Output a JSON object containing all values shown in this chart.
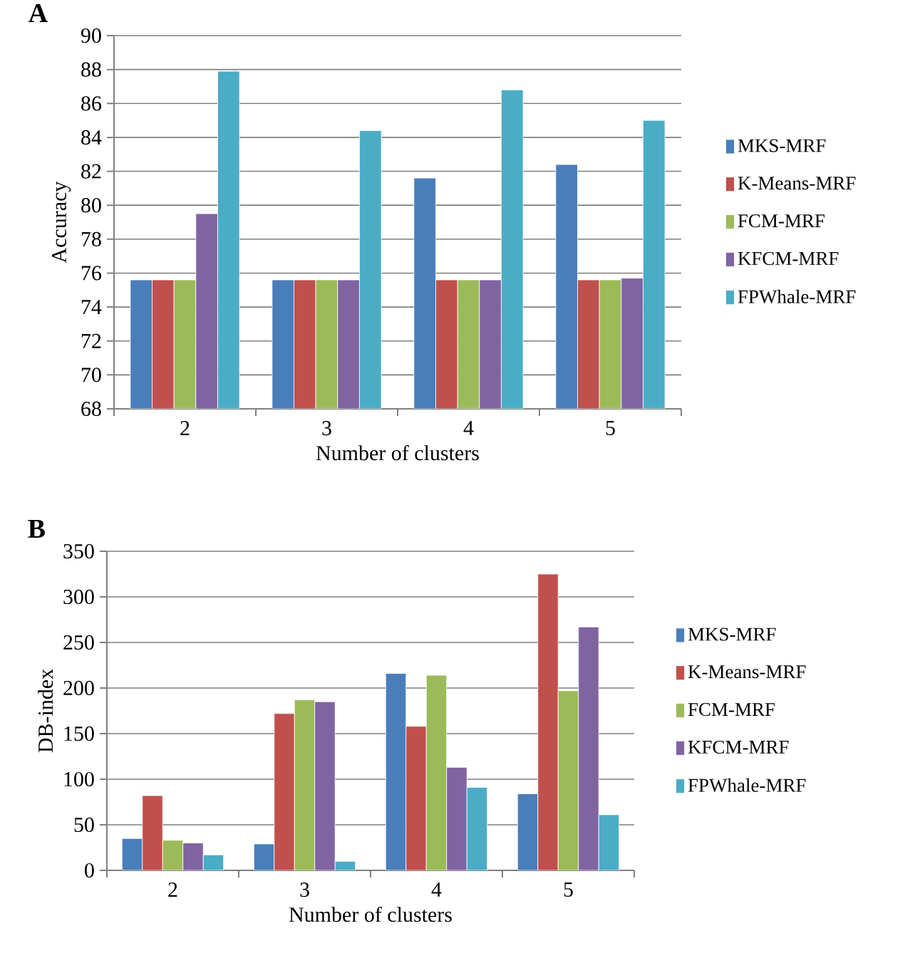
{
  "chart_data": [
    {
      "type": "bar",
      "title": "A",
      "xlabel": "Number of clusters",
      "ylabel": "Accuracy",
      "categories": [
        "2",
        "3",
        "4",
        "5"
      ],
      "series": [
        {
          "name": "MKS-MRF",
          "color": "#4a7ebb",
          "values": [
            75.6,
            75.6,
            81.6,
            82.4
          ]
        },
        {
          "name": "K-Means-MRF",
          "color": "#c0504d",
          "values": [
            75.6,
            75.6,
            75.6,
            75.6
          ]
        },
        {
          "name": "FCM-MRF",
          "color": "#9bbb59",
          "values": [
            75.6,
            75.6,
            75.6,
            75.6
          ]
        },
        {
          "name": "KFCM-MRF",
          "color": "#8064a2",
          "values": [
            79.5,
            75.6,
            75.6,
            75.7
          ]
        },
        {
          "name": "FPWhale-MRF",
          "color": "#4bacc6",
          "values": [
            87.9,
            84.4,
            86.8,
            85.0
          ]
        }
      ],
      "ylim": [
        68,
        90
      ],
      "yticks": [
        68,
        70,
        72,
        74,
        76,
        78,
        80,
        82,
        84,
        86,
        88,
        90
      ],
      "grid": "y",
      "legend": "right"
    },
    {
      "type": "bar",
      "title": "B",
      "xlabel": "Number of clusters",
      "ylabel": "DB-index",
      "categories": [
        "2",
        "3",
        "4",
        "5"
      ],
      "series": [
        {
          "name": "MKS-MRF",
          "color": "#4a7ebb",
          "values": [
            35,
            29,
            216,
            84
          ]
        },
        {
          "name": "K-Means-MRF",
          "color": "#c0504d",
          "values": [
            82,
            172,
            158,
            325
          ]
        },
        {
          "name": "FCM-MRF",
          "color": "#9bbb59",
          "values": [
            33,
            187,
            214,
            197
          ]
        },
        {
          "name": "KFCM-MRF",
          "color": "#8064a2",
          "values": [
            30,
            185,
            113,
            267
          ]
        },
        {
          "name": "FPWhale-MRF",
          "color": "#4bacc6",
          "values": [
            17,
            10,
            91,
            61
          ]
        }
      ],
      "ylim": [
        0,
        350
      ],
      "yticks": [
        0,
        50,
        100,
        150,
        200,
        250,
        300,
        350
      ],
      "grid": "y",
      "legend": "right"
    }
  ]
}
